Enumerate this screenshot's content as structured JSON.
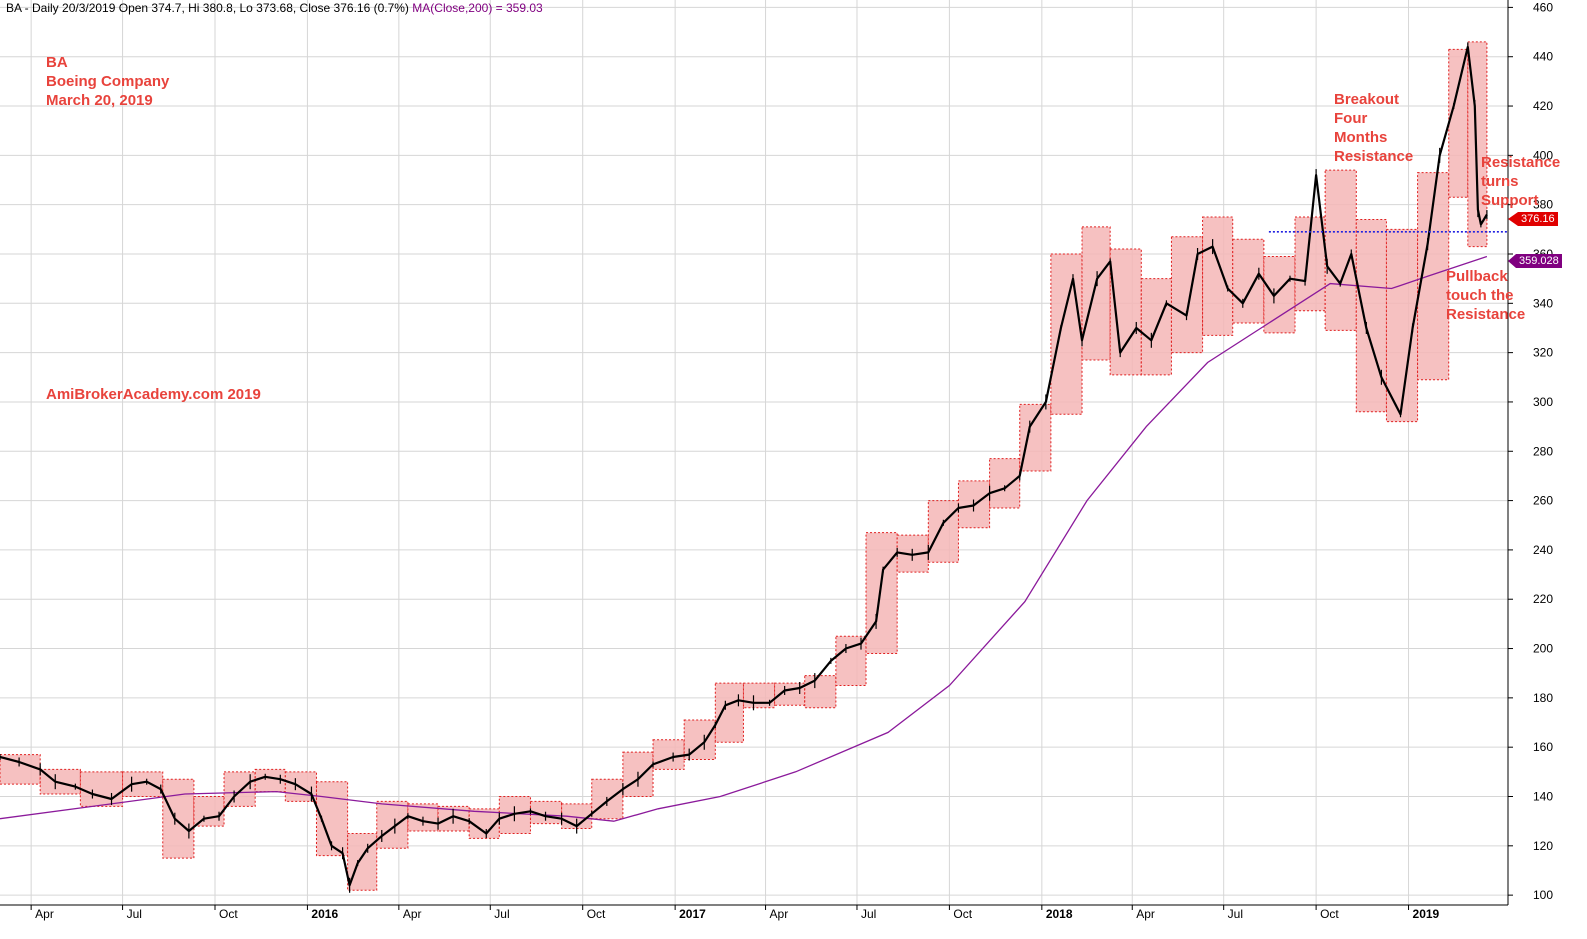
{
  "header": {
    "symbol_line": "BA - Daily 20/3/2019 Open 374.7, Hi 380.8, Lo 373.68, Close 376.16 (0.7%)",
    "ma_line": "MA(Close,200) = 359.03"
  },
  "annotations": {
    "stock": [
      "BA",
      "Boeing Company",
      "March 20, 2019"
    ],
    "site": "AmiBrokerAcademy.com  2019",
    "breakout": [
      "Breakout",
      "Four",
      "Months",
      "Resistance"
    ],
    "resistance_support": [
      "Resistance",
      "turns",
      "Support"
    ],
    "pullback": [
      "Pullback",
      "touch the",
      "Resistance"
    ]
  },
  "tags": {
    "close": "376.16",
    "ma": "359.028"
  },
  "colors": {
    "price": "#000000",
    "ma": "#8b1a9b",
    "box_fill": "#f4b6b6",
    "box_border": "#e02020",
    "support_line": "#2020e0",
    "annotation": "#e8433c"
  },
  "chart_data": {
    "type": "line",
    "title": "BA - Daily 20/3/2019 Open 374.7, Hi 380.8, Lo 373.68, Close 376.16 (0.7%)",
    "y_axis": {
      "position": "right",
      "range": [
        96,
        463
      ],
      "ticks": [
        100,
        120,
        140,
        160,
        180,
        200,
        220,
        240,
        260,
        280,
        300,
        320,
        340,
        360,
        380,
        400,
        420,
        440,
        460
      ]
    },
    "x_axis": {
      "labels": [
        "Apr",
        "Jul",
        "Oct",
        "2016",
        "Apr",
        "Jul",
        "Oct",
        "2017",
        "Apr",
        "Jul",
        "Oct",
        "2018",
        "Apr",
        "Jul",
        "Oct",
        "2019"
      ],
      "bold_labels": [
        "2016",
        "2017",
        "2018",
        "2019"
      ],
      "range": [
        "2015-03-01",
        "2019-04-10"
      ]
    },
    "grid": true,
    "series": [
      {
        "name": "BA",
        "points": [
          [
            "2015-03-01",
            156
          ],
          [
            "2015-03-20",
            154
          ],
          [
            "2015-04-10",
            151
          ],
          [
            "2015-04-25",
            146
          ],
          [
            "2015-05-15",
            144
          ],
          [
            "2015-06-01",
            141
          ],
          [
            "2015-06-20",
            139
          ],
          [
            "2015-07-10",
            145
          ],
          [
            "2015-07-25",
            146
          ],
          [
            "2015-08-08",
            143
          ],
          [
            "2015-08-22",
            131
          ],
          [
            "2015-09-05",
            126
          ],
          [
            "2015-09-20",
            131
          ],
          [
            "2015-10-05",
            132
          ],
          [
            "2015-10-20",
            140
          ],
          [
            "2015-11-05",
            146
          ],
          [
            "2015-11-20",
            148
          ],
          [
            "2015-12-05",
            147
          ],
          [
            "2015-12-20",
            145
          ],
          [
            "2016-01-05",
            141
          ],
          [
            "2016-01-15",
            131
          ],
          [
            "2016-01-25",
            120
          ],
          [
            "2016-02-05",
            117
          ],
          [
            "2016-02-12",
            104
          ],
          [
            "2016-02-20",
            113
          ],
          [
            "2016-03-01",
            119
          ],
          [
            "2016-03-15",
            124
          ],
          [
            "2016-03-28",
            128
          ],
          [
            "2016-04-10",
            132
          ],
          [
            "2016-04-25",
            130
          ],
          [
            "2016-05-10",
            129
          ],
          [
            "2016-05-25",
            132
          ],
          [
            "2016-06-10",
            130
          ],
          [
            "2016-06-27",
            125
          ],
          [
            "2016-07-10",
            131
          ],
          [
            "2016-07-25",
            133
          ],
          [
            "2016-08-10",
            134
          ],
          [
            "2016-08-25",
            132
          ],
          [
            "2016-09-10",
            131
          ],
          [
            "2016-09-25",
            128
          ],
          [
            "2016-10-10",
            133
          ],
          [
            "2016-10-25",
            138
          ],
          [
            "2016-11-10",
            143
          ],
          [
            "2016-11-25",
            147
          ],
          [
            "2016-12-10",
            153
          ],
          [
            "2016-12-30",
            156
          ],
          [
            "2017-01-15",
            157
          ],
          [
            "2017-01-30",
            162
          ],
          [
            "2017-02-10",
            169
          ],
          [
            "2017-02-20",
            177
          ],
          [
            "2017-03-05",
            179
          ],
          [
            "2017-03-20",
            178
          ],
          [
            "2017-04-05",
            178
          ],
          [
            "2017-04-20",
            183
          ],
          [
            "2017-05-05",
            184
          ],
          [
            "2017-05-20",
            187
          ],
          [
            "2017-06-05",
            195
          ],
          [
            "2017-06-20",
            200
          ],
          [
            "2017-07-05",
            202
          ],
          [
            "2017-07-20",
            211
          ],
          [
            "2017-07-27",
            232
          ],
          [
            "2017-08-10",
            239
          ],
          [
            "2017-08-25",
            238
          ],
          [
            "2017-09-10",
            239
          ],
          [
            "2017-09-25",
            251
          ],
          [
            "2017-10-10",
            257
          ],
          [
            "2017-10-25",
            258
          ],
          [
            "2017-11-10",
            263
          ],
          [
            "2017-11-25",
            265
          ],
          [
            "2017-12-10",
            270
          ],
          [
            "2017-12-20",
            290
          ],
          [
            "2018-01-05",
            300
          ],
          [
            "2018-01-20",
            330
          ],
          [
            "2018-02-01",
            350
          ],
          [
            "2018-02-10",
            325
          ],
          [
            "2018-02-25",
            350
          ],
          [
            "2018-03-10",
            357
          ],
          [
            "2018-03-20",
            320
          ],
          [
            "2018-04-05",
            330
          ],
          [
            "2018-04-20",
            325
          ],
          [
            "2018-05-05",
            340
          ],
          [
            "2018-05-25",
            335
          ],
          [
            "2018-06-05",
            360
          ],
          [
            "2018-06-20",
            363
          ],
          [
            "2018-07-05",
            346
          ],
          [
            "2018-07-20",
            340
          ],
          [
            "2018-08-05",
            352
          ],
          [
            "2018-08-20",
            343
          ],
          [
            "2018-09-05",
            350
          ],
          [
            "2018-09-20",
            349
          ],
          [
            "2018-10-01",
            392
          ],
          [
            "2018-10-12",
            355
          ],
          [
            "2018-10-25",
            348
          ],
          [
            "2018-11-05",
            360
          ],
          [
            "2018-11-20",
            330
          ],
          [
            "2018-12-05",
            310
          ],
          [
            "2018-12-24",
            295
          ],
          [
            "2019-01-05",
            330
          ],
          [
            "2019-01-20",
            364
          ],
          [
            "2019-02-01",
            400
          ],
          [
            "2019-02-15",
            420
          ],
          [
            "2019-03-01",
            444
          ],
          [
            "2019-03-08",
            420
          ],
          [
            "2019-03-11",
            378
          ],
          [
            "2019-03-14",
            372
          ],
          [
            "2019-03-20",
            376
          ]
        ]
      },
      {
        "name": "MA(Close,200)",
        "points": [
          [
            "2015-03-01",
            131
          ],
          [
            "2015-06-01",
            136
          ],
          [
            "2015-09-01",
            141
          ],
          [
            "2015-12-01",
            142
          ],
          [
            "2016-01-15",
            140
          ],
          [
            "2016-03-15",
            137
          ],
          [
            "2016-06-15",
            134
          ],
          [
            "2016-09-15",
            132
          ],
          [
            "2016-11-01",
            130
          ],
          [
            "2016-12-15",
            135
          ],
          [
            "2017-02-15",
            140
          ],
          [
            "2017-05-01",
            150
          ],
          [
            "2017-08-01",
            166
          ],
          [
            "2017-10-01",
            185
          ],
          [
            "2017-12-15",
            219
          ],
          [
            "2018-02-15",
            260
          ],
          [
            "2018-04-15",
            290
          ],
          [
            "2018-06-15",
            316
          ],
          [
            "2018-08-15",
            332
          ],
          [
            "2018-10-15",
            348
          ],
          [
            "2018-12-15",
            346
          ],
          [
            "2019-01-20",
            351
          ],
          [
            "2019-03-20",
            359
          ]
        ]
      }
    ],
    "resistance_boxes": [
      [
        "2015-03-01",
        "2015-04-10",
        145,
        157
      ],
      [
        "2015-04-10",
        "2015-05-20",
        141,
        151
      ],
      [
        "2015-05-20",
        "2015-07-01",
        136,
        150
      ],
      [
        "2015-07-01",
        "2015-08-10",
        140,
        150
      ],
      [
        "2015-08-10",
        "2015-09-10",
        115,
        147
      ],
      [
        "2015-09-10",
        "2015-10-10",
        128,
        140
      ],
      [
        "2015-10-10",
        "2015-11-10",
        136,
        150
      ],
      [
        "2015-11-10",
        "2015-12-10",
        142,
        151
      ],
      [
        "2015-12-10",
        "2016-01-10",
        138,
        150
      ],
      [
        "2016-01-10",
        "2016-02-10",
        116,
        146
      ],
      [
        "2016-02-10",
        "2016-03-10",
        102,
        125
      ],
      [
        "2016-03-10",
        "2016-04-10",
        119,
        138
      ],
      [
        "2016-04-10",
        "2016-05-10",
        126,
        137
      ],
      [
        "2016-05-10",
        "2016-06-10",
        126,
        136
      ],
      [
        "2016-06-10",
        "2016-07-10",
        123,
        135
      ],
      [
        "2016-07-10",
        "2016-08-10",
        125,
        140
      ],
      [
        "2016-08-10",
        "2016-09-10",
        129,
        138
      ],
      [
        "2016-09-10",
        "2016-10-10",
        127,
        137
      ],
      [
        "2016-10-10",
        "2016-11-10",
        131,
        147
      ],
      [
        "2016-11-10",
        "2016-12-10",
        140,
        158
      ],
      [
        "2016-12-10",
        "2017-01-10",
        151,
        163
      ],
      [
        "2017-01-10",
        "2017-02-10",
        155,
        171
      ],
      [
        "2017-02-10",
        "2017-03-10",
        162,
        186
      ],
      [
        "2017-03-10",
        "2017-04-10",
        176,
        186
      ],
      [
        "2017-04-10",
        "2017-05-10",
        177,
        186
      ],
      [
        "2017-05-10",
        "2017-06-10",
        176,
        189
      ],
      [
        "2017-06-10",
        "2017-07-10",
        185,
        205
      ],
      [
        "2017-07-10",
        "2017-08-10",
        198,
        247
      ],
      [
        "2017-08-10",
        "2017-09-10",
        231,
        246
      ],
      [
        "2017-09-10",
        "2017-10-10",
        235,
        260
      ],
      [
        "2017-10-10",
        "2017-11-10",
        249,
        268
      ],
      [
        "2017-11-10",
        "2017-12-10",
        257,
        277
      ],
      [
        "2017-12-10",
        "2018-01-10",
        272,
        299
      ],
      [
        "2018-01-10",
        "2018-02-10",
        295,
        360
      ],
      [
        "2018-02-10",
        "2018-03-10",
        317,
        371
      ],
      [
        "2018-03-10",
        "2018-04-10",
        311,
        362
      ],
      [
        "2018-04-10",
        "2018-05-10",
        311,
        350
      ],
      [
        "2018-05-10",
        "2018-06-10",
        320,
        367
      ],
      [
        "2018-06-10",
        "2018-07-10",
        327,
        375
      ],
      [
        "2018-07-10",
        "2018-08-10",
        332,
        366
      ],
      [
        "2018-08-10",
        "2018-09-10",
        328,
        359
      ],
      [
        "2018-09-10",
        "2018-10-10",
        337,
        375
      ],
      [
        "2018-10-10",
        "2018-11-10",
        329,
        394
      ],
      [
        "2018-11-10",
        "2018-12-10",
        296,
        374
      ],
      [
        "2018-12-10",
        "2019-01-10",
        292,
        370
      ],
      [
        "2019-01-10",
        "2019-02-10",
        309,
        393
      ],
      [
        "2019-02-10",
        "2019-03-01",
        383,
        443
      ],
      [
        "2019-03-01",
        "2019-03-20",
        363,
        446
      ]
    ],
    "support_line": {
      "from": "2018-08-15",
      "to": "2019-04-10",
      "value": 369
    }
  }
}
